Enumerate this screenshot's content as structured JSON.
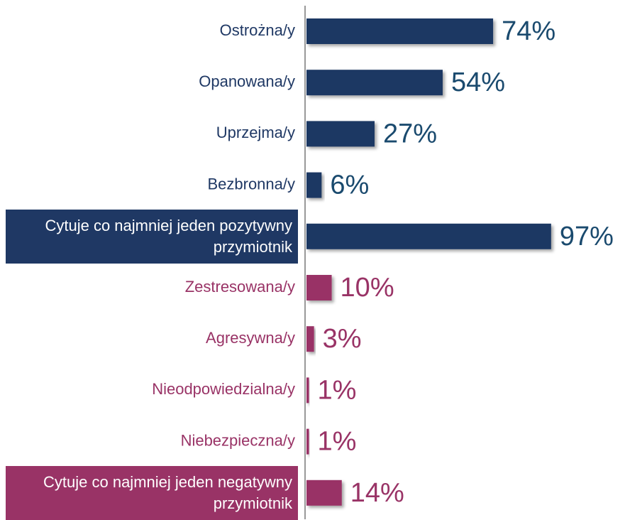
{
  "chart_data": {
    "type": "hbar",
    "categories": [
      "Ostrożna/y",
      "Opanowana/y",
      "Uprzejma/y",
      "Bezbronna/y",
      "Cytuje co najmniej jeden pozytywny przymiotnik",
      "Zestresowana/y",
      "Agresywna/y",
      "Nieodpowiedzialna/y",
      "Niebezpieczna/y",
      "Cytuje co najmniej jeden negatywny przymiotnik"
    ],
    "values": [
      74,
      54,
      27,
      6,
      97,
      10,
      3,
      1,
      1,
      14
    ],
    "value_labels": [
      "74%",
      "54%",
      "27%",
      "6%",
      "97%",
      "10%",
      "3%",
      "1%",
      "1%",
      "14%"
    ],
    "colors": [
      "#1f3864",
      "#1f3864",
      "#1f3864",
      "#1f3864",
      "#1f3864",
      "#993366",
      "#993366",
      "#993366",
      "#993366",
      "#993366"
    ],
    "highlighted": [
      4,
      9
    ],
    "xlim": [
      0,
      100
    ]
  }
}
